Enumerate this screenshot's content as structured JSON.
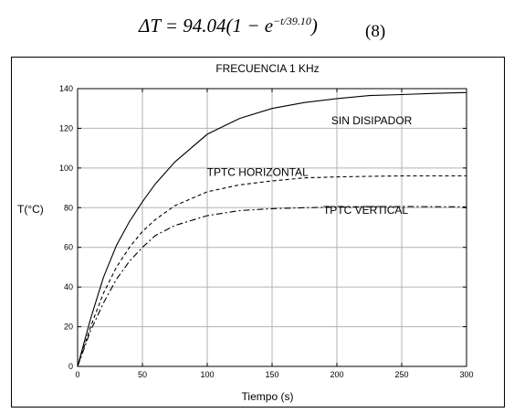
{
  "equation": {
    "lhs": "ΔT",
    "coef": "94.04(1",
    "minus": "−",
    "base": "e",
    "exponent": "−t/39.10",
    "close": ")",
    "number": "(8)"
  },
  "chart_data": {
    "type": "line",
    "title": "FRECUENCIA   1 KHz",
    "xlabel": "Tiempo (s)",
    "ylabel": "T(°C)",
    "xlim": [
      0,
      300
    ],
    "ylim": [
      0,
      140
    ],
    "xticks": [
      0,
      50,
      100,
      150,
      200,
      250,
      300
    ],
    "yticks": [
      0,
      20,
      40,
      60,
      80,
      100,
      120,
      140
    ],
    "grid": true,
    "series": [
      {
        "name": "SIN DISIPADOR",
        "style": "solid",
        "color": "#000000",
        "x": [
          0,
          10,
          20,
          30,
          40,
          50,
          60,
          75,
          100,
          125,
          150,
          175,
          200,
          225,
          250,
          275,
          300
        ],
        "y": [
          0,
          24,
          45,
          61,
          73,
          83,
          92,
          103,
          117,
          125,
          130,
          133,
          135,
          136.5,
          137,
          137.6,
          138
        ]
      },
      {
        "name": "TPTC HORIZONTAL",
        "style": "dashed",
        "color": "#000000",
        "x": [
          0,
          10,
          20,
          30,
          40,
          50,
          60,
          75,
          100,
          125,
          150,
          175,
          200,
          225,
          250,
          275,
          300
        ],
        "y": [
          0,
          20,
          37,
          50,
          60,
          68,
          74,
          81,
          88,
          91.5,
          93.5,
          95,
          95.5,
          95.8,
          96,
          96,
          96
        ]
      },
      {
        "name": "TPTC VERTICAL",
        "style": "dashdot",
        "color": "#000000",
        "x": [
          0,
          10,
          20,
          30,
          40,
          50,
          60,
          75,
          100,
          125,
          150,
          175,
          200,
          225,
          250,
          275,
          300
        ],
        "y": [
          0,
          18,
          32,
          44,
          53,
          60,
          66,
          71,
          76,
          78.5,
          79.5,
          80,
          80.3,
          80.5,
          80.6,
          80.5,
          80.4
        ]
      }
    ]
  }
}
